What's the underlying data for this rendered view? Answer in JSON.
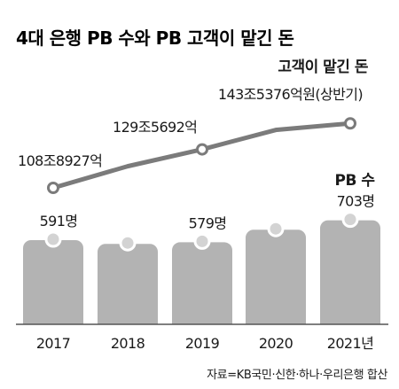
{
  "chart_data": {
    "type": "bar+line",
    "title": "4대 은행 PB 수와 PB 고객이 맡긴 돈",
    "categories": [
      "2017",
      "2018",
      "2019",
      "2020",
      "2021년"
    ],
    "series": [
      {
        "name": "PB 수",
        "type": "bar",
        "values": [
          591,
          570,
          579,
          650,
          703
        ],
        "unit": "명",
        "labels": [
          "591명",
          "",
          "579명",
          "",
          "703명"
        ]
      },
      {
        "name": "고객이 맡긴 돈",
        "type": "line",
        "values": [
          108.8927,
          120.5,
          129.5692,
          140.0,
          143.5376
        ],
        "unit": "조원",
        "labels": [
          "108조8927억",
          "",
          "129조5692억",
          "",
          "143조5376억원(상반기)"
        ]
      }
    ],
    "series_titles": {
      "bar": "PB 수",
      "line": "고객이 맡긴 돈"
    },
    "line_label_above": "고객이 맡긴 돈",
    "bar_label_above": "PB 수",
    "colors": {
      "bar": "#b3b3b3",
      "bar_marker": "#d3d3d3",
      "line": "#7b7b7b",
      "marker_fill": "#ffffff",
      "axis": "#555555"
    },
    "source": "자료=KB국민·신한·하나·우리은행 합산"
  }
}
